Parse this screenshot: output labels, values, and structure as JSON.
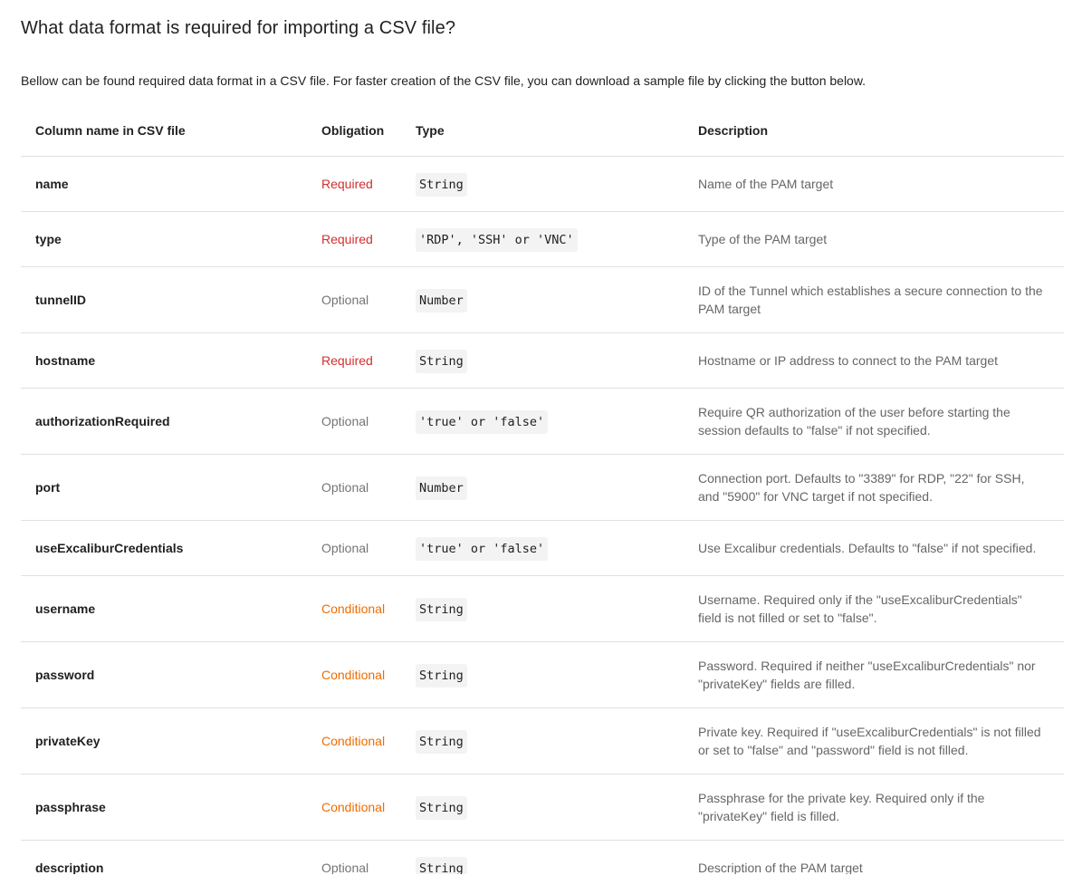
{
  "title": "What data format is required for importing a CSV file?",
  "intro": "Bellow can be found required data format in a CSV file. For faster creation of the CSV file, you can download a sample file by clicking the button below.",
  "colors": {
    "required": "#d32f2f",
    "optional": "#757575",
    "conditional": "#ef6c00"
  },
  "table": {
    "headers": [
      "Column name in CSV file",
      "Obligation",
      "Type",
      "Description"
    ],
    "rows": [
      {
        "name": "name",
        "obligation": "Required",
        "kind": "req",
        "type": "String",
        "description": "Name of the PAM target"
      },
      {
        "name": "type",
        "obligation": "Required",
        "kind": "req",
        "type": "'RDP', 'SSH' or 'VNC'",
        "description": "Type of the PAM target"
      },
      {
        "name": "tunnelID",
        "obligation": "Optional",
        "kind": "opt",
        "type": "Number",
        "description": "ID of the Tunnel which establishes a secure connection to the PAM target"
      },
      {
        "name": "hostname",
        "obligation": "Required",
        "kind": "req",
        "type": "String",
        "description": "Hostname or IP address to connect to the PAM target"
      },
      {
        "name": "authorizationRequired",
        "obligation": "Optional",
        "kind": "opt",
        "type": "'true' or 'false'",
        "description": "Require QR authorization of the user before starting the session defaults to \"false\" if not specified."
      },
      {
        "name": "port",
        "obligation": "Optional",
        "kind": "opt",
        "type": "Number",
        "description": "Connection port. Defaults to \"3389\" for RDP, \"22\" for SSH, and \"5900\" for VNC target if not specified."
      },
      {
        "name": "useExcaliburCredentials",
        "obligation": "Optional",
        "kind": "opt",
        "type": "'true' or 'false'",
        "description": "Use Excalibur credentials. Defaults to \"false\" if not specified."
      },
      {
        "name": "username",
        "obligation": "Conditional",
        "kind": "cond",
        "type": "String",
        "description": "Username. Required only if the \"useExcaliburCredentials\" field is not filled or set to \"false\"."
      },
      {
        "name": "password",
        "obligation": "Conditional",
        "kind": "cond",
        "type": "String",
        "description": "Password. Required if neither \"useExcaliburCredentials\" nor \"privateKey\" fields are filled."
      },
      {
        "name": "privateKey",
        "obligation": "Conditional",
        "kind": "cond",
        "type": "String",
        "description": "Private key. Required if \"useExcaliburCredentials\" is not filled or set to \"false\" and \"password\" field is not filled."
      },
      {
        "name": "passphrase",
        "obligation": "Conditional",
        "kind": "cond",
        "type": "String",
        "description": "Passphrase for the private key. Required only if the \"privateKey\" field is filled."
      },
      {
        "name": "description",
        "obligation": "Optional",
        "kind": "opt",
        "type": "String",
        "description": "Description of the PAM target"
      }
    ]
  }
}
